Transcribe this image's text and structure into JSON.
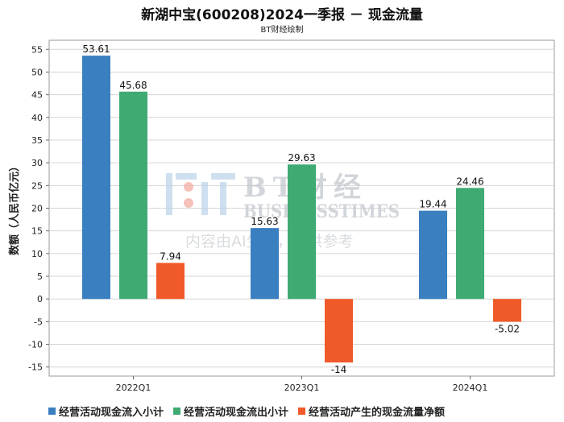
{
  "title": "新湖中宝(600208)2024一季报 － 现金流量",
  "subtitle": "BT财经绘制",
  "watermark": {
    "brand": "BT财经",
    "brand_en": "BUSINESSTIMES",
    "notice": "内容由AI生成，仅供参考"
  },
  "chart_data": {
    "type": "bar",
    "categories": [
      "2022Q1",
      "2023Q1",
      "2024Q1"
    ],
    "ylabel": "数额（人民币亿元）",
    "ylim": [
      -17,
      57
    ],
    "yticks": [
      55,
      50,
      45,
      40,
      35,
      30,
      25,
      20,
      15,
      10,
      5,
      0,
      -5,
      -10,
      -15
    ],
    "grid": true,
    "legend_position": "bottom",
    "series": [
      {
        "name": "经营活动现金流入小计",
        "color": "#3a7fc0",
        "values": [
          53.61,
          15.63,
          19.44
        ],
        "labels": [
          "53.61",
          "15.63",
          "19.44"
        ]
      },
      {
        "name": "经营活动现金流出小计",
        "color": "#3faa72",
        "values": [
          45.68,
          29.63,
          24.46
        ],
        "labels": [
          "45.68",
          "29.63",
          "24.46"
        ]
      },
      {
        "name": "经营活动产生的现金流量净额",
        "color": "#f05a28",
        "values": [
          7.94,
          -14,
          -5.02
        ],
        "labels": [
          "7.94",
          "-14",
          "-5.02"
        ]
      }
    ]
  }
}
